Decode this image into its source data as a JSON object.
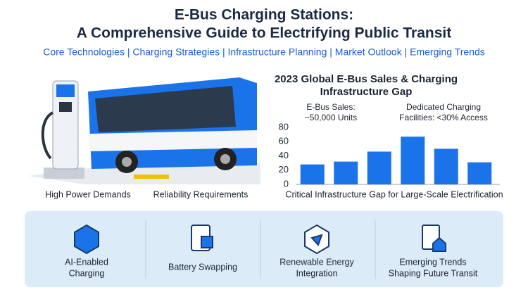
{
  "header": {
    "title_lines": [
      "E-Bus Charging Stations:",
      "A Comprehensive Guide to Electrifying Public Transit"
    ],
    "subtitle": "Core Technologies | Charging Strategies | Infrastructure Planning | Market Outlook | Emerging Trends"
  },
  "illustration": {
    "labels": [
      "High Power Demands",
      "Reliability Requirements"
    ]
  },
  "chart_data": {
    "type": "bar",
    "title_lines": [
      "2023 Global E-Bus Sales & Charging",
      "Infrastructure Gap"
    ],
    "annotations": [
      [
        "E-Bus Sales:",
        "~50,000 Units"
      ],
      [
        "Dedicated Charging",
        "Facilities: <30% Access"
      ]
    ],
    "caption": "Critical Infrastructure Gap for Large-Scale Electrification",
    "categories": [
      null,
      null,
      null,
      null,
      null,
      null
    ],
    "values": [
      28,
      32,
      46,
      67,
      50,
      31
    ],
    "color": "#1a73e8",
    "ylim": [
      0,
      80
    ],
    "yticks": [
      0,
      20,
      40,
      60,
      80
    ],
    "grid": false
  },
  "features": [
    {
      "label_lines": [
        "AI-Enabled",
        "Charging"
      ]
    },
    {
      "label_lines": [
        "Battery Swapping"
      ]
    },
    {
      "label_lines": [
        "Renewable Energy",
        "Integration"
      ]
    },
    {
      "label_lines": [
        "Emerging Trends",
        "Shaping Future Transit"
      ]
    }
  ]
}
